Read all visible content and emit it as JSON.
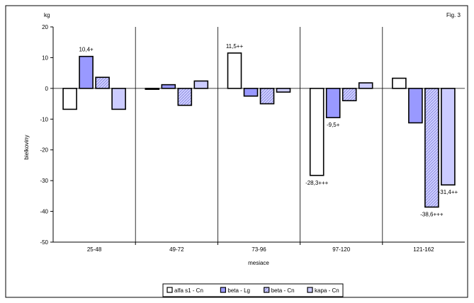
{
  "figure_label": "Fig. 3",
  "unit_label": "kg",
  "colors": {
    "alfa_s1_cn": "#ffffff",
    "beta_lg": "#9999ff",
    "beta_cn": "#ccccff",
    "kapa_cn": "#ccccff",
    "outline": "#000000"
  },
  "chart_data": {
    "type": "bar",
    "xlabel": "mesiace",
    "ylabel": "bielkoviny",
    "ylim": [
      -50,
      20
    ],
    "yticks": [
      20,
      10,
      0,
      -10,
      -20,
      -30,
      -40,
      -50
    ],
    "grid": "vertical separators between categories",
    "legend_position": "bottom-center",
    "categories": [
      "25-48",
      "49-72",
      "73-96",
      "97-120",
      "121-162"
    ],
    "series": [
      {
        "name": "alfa s1 - Cn",
        "values": [
          -6.8,
          -0.3,
          11.5,
          -28.3,
          3.3
        ],
        "pattern": "none"
      },
      {
        "name": "beta - Lg",
        "values": [
          10.4,
          1.2,
          -2.5,
          -9.5,
          -11.2
        ],
        "pattern": "none"
      },
      {
        "name": "beta - Cn",
        "values": [
          3.6,
          -5.5,
          -5.0,
          -4.0,
          -38.6
        ],
        "pattern": "diagonal"
      },
      {
        "name": "kapa - Cn",
        "values": [
          -6.8,
          2.4,
          -1.2,
          1.8,
          -31.4
        ],
        "pattern": "none"
      }
    ],
    "annotations": [
      {
        "series": 1,
        "category": 0,
        "text": "10,4+"
      },
      {
        "series": 0,
        "category": 2,
        "text": "11,5++"
      },
      {
        "series": 0,
        "category": 3,
        "text": "-28,3+++"
      },
      {
        "series": 1,
        "category": 3,
        "text": "-9,5+"
      },
      {
        "series": 2,
        "category": 4,
        "text": "-38,6+++"
      },
      {
        "series": 3,
        "category": 4,
        "text": "-31,4++"
      }
    ]
  }
}
